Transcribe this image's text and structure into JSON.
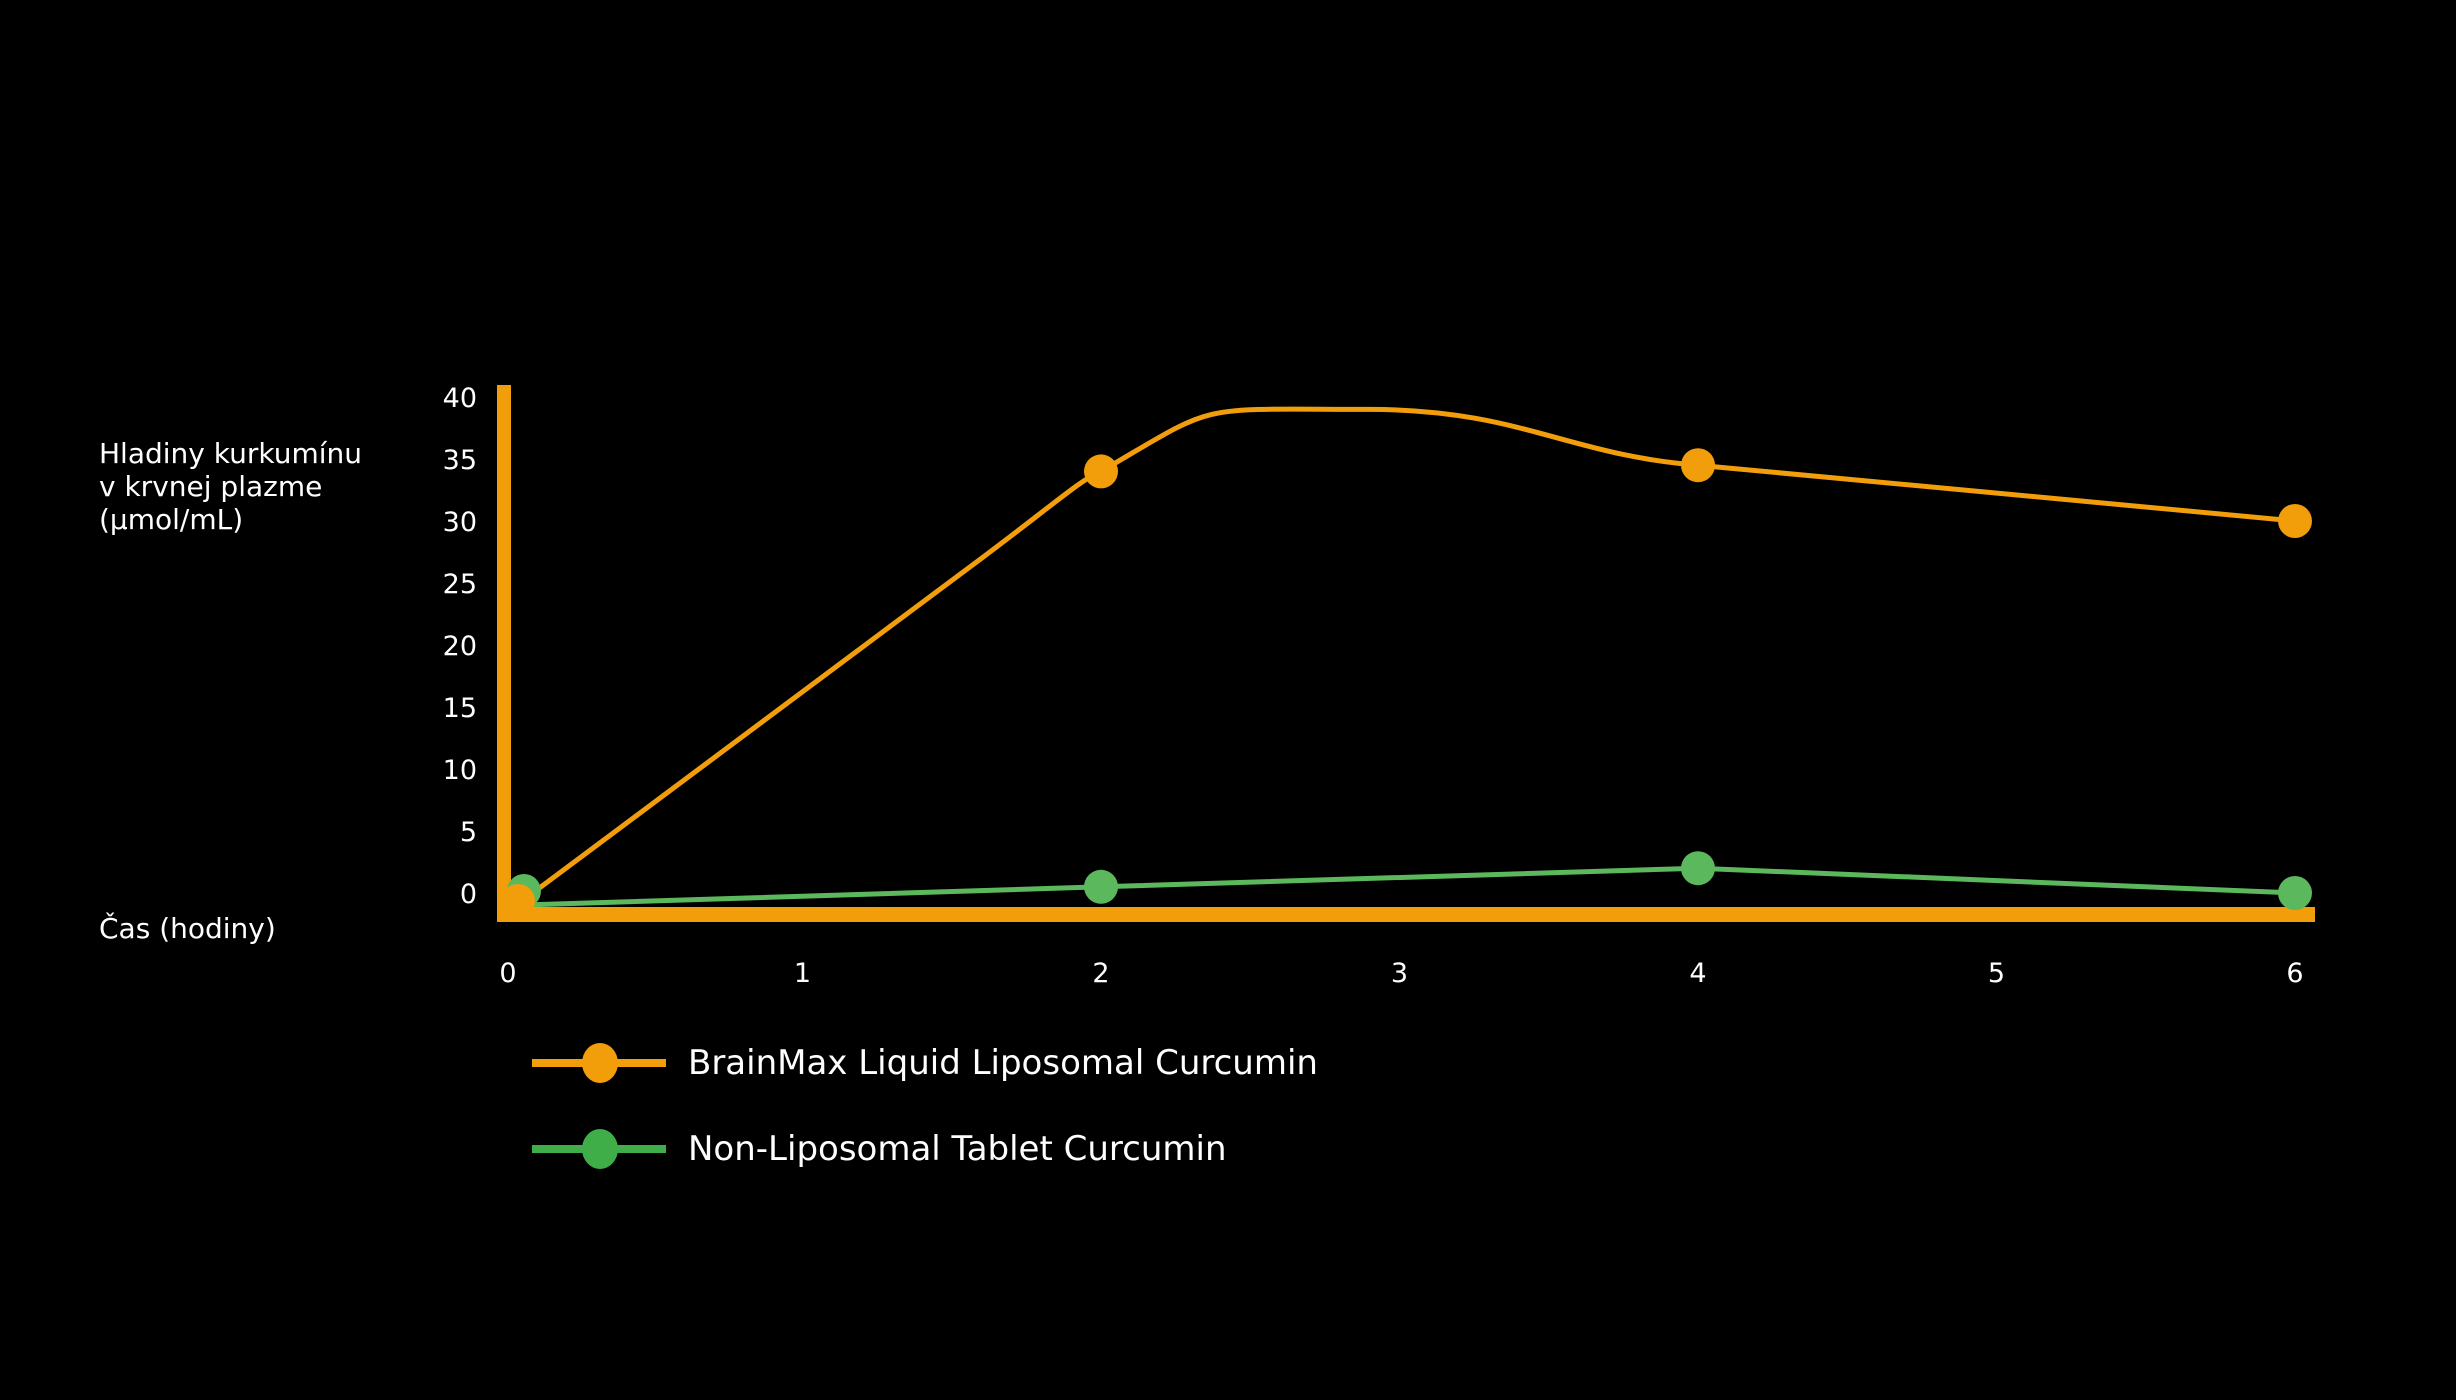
{
  "chart_data": {
    "type": "line",
    "title": "",
    "xlabel": "Čas (hodiny)",
    "ylabel": "Hladiny kurkumínu\nv krvnej plazme\n(µmol/mL)",
    "x": [
      0,
      2,
      4,
      6
    ],
    "x_ticks": [
      "0",
      "1",
      "2",
      "3",
      "4",
      "5",
      "6"
    ],
    "y_ticks": [
      "40",
      "35",
      "30",
      "25",
      "20",
      "15",
      "10",
      "5",
      "0"
    ],
    "ylim": [
      0,
      40
    ],
    "xlim": [
      0,
      6
    ],
    "grid": false,
    "legend_position": "bottom-left",
    "series": [
      {
        "name": "BrainMax Liquid Liposomal Curcumin",
        "color": "#F29D0A",
        "values": [
          0,
          34,
          34.5,
          30
        ],
        "smoothed_peak": {
          "x": 2.9,
          "y": 39
        }
      },
      {
        "name": "Non-Liposomal Tablet Curcumin",
        "color": "#5CB85C",
        "values": [
          0,
          0.5,
          2,
          0
        ]
      }
    ]
  },
  "labels": {
    "ylabel": "Hladiny kurkumínu\nv krvnej plazme\n(µmol/mL)",
    "xlabel": "Čas (hodiny)"
  },
  "legend": [
    {
      "label": "BrainMax Liquid Liposomal Curcumin",
      "color": "#F29D0A"
    },
    {
      "label": "Non-Liposomal Tablet Curcumin",
      "color": "#3FAE49"
    }
  ],
  "colors": {
    "axis": "#F29D0A",
    "background": "#000000"
  }
}
